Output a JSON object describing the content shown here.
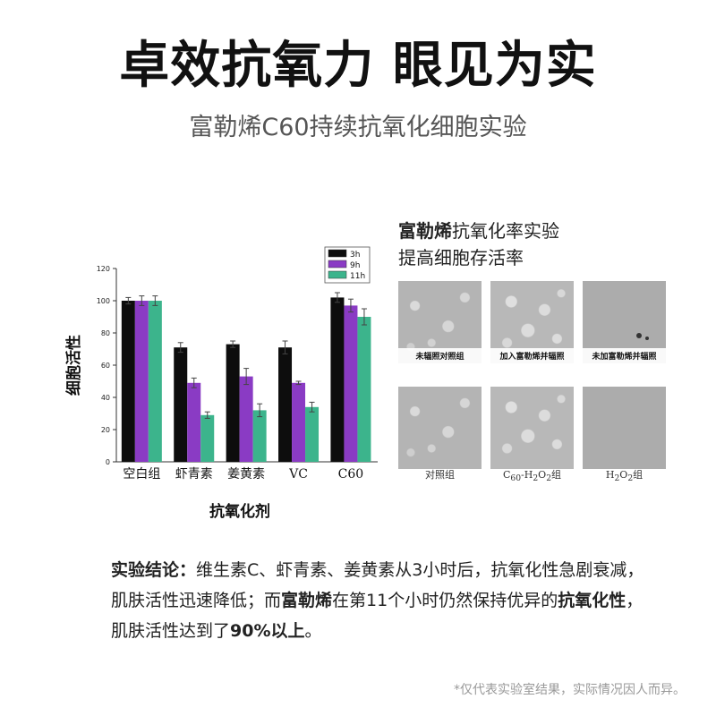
{
  "header": {
    "title": "卓效抗氧力 眼见为实",
    "subtitle": "富勒烯C60持续抗氧化细胞实验"
  },
  "chart_data": {
    "type": "bar",
    "categories": [
      "空白组",
      "虾青素",
      "姜黄素",
      "VC",
      "C60"
    ],
    "series": [
      {
        "name": "3h",
        "values": [
          100,
          71,
          73,
          71,
          102
        ],
        "errors": [
          2,
          3,
          2,
          4,
          3
        ],
        "color": "#0d0d0d"
      },
      {
        "name": "9h",
        "values": [
          100,
          49,
          53,
          49,
          97
        ],
        "errors": [
          3,
          3,
          5,
          1,
          4
        ],
        "color": "#8a3bc4"
      },
      {
        "name": "11h",
        "values": [
          100,
          29,
          32,
          34,
          90
        ],
        "errors": [
          3,
          2,
          4,
          3,
          5
        ],
        "color": "#3cb48c"
      }
    ],
    "xlabel": "抗氧化剂",
    "ylabel": "细胞活性",
    "ylim": [
      0,
      120
    ],
    "yticks": [
      0,
      20,
      40,
      60,
      80,
      100,
      120
    ],
    "legend": "top-right",
    "grid": false
  },
  "cell_panel": {
    "title_strong": "富勒烯",
    "title_rest": "抗氧化率实验",
    "title_line2": "提高细胞存活率",
    "top_labels": [
      "未辐照对照组",
      "加入富勒烯并辐照",
      "未加富勒烯并辐照"
    ],
    "bottom_labels": [
      {
        "pre": "对照组",
        "sub1": "",
        "mid": "",
        "sub2": "",
        "post": ""
      },
      {
        "pre": "C",
        "sub1": "60",
        "mid": "-H",
        "sub2": "2",
        "post": "O"
      },
      {
        "pre": "H",
        "sub1": "2",
        "mid": "O",
        "sub2": "2",
        "post": "组"
      }
    ],
    "bottom_suffix": {
      "c60": "2",
      "c60_tail": "组"
    }
  },
  "conclusion": {
    "lead": "实验结论：",
    "part1": "维生素C、虾青素、姜黄素从3小时后，抗氧化性急剧衰减，肌肤活性迅速降低；而",
    "strong1": "富勒烯",
    "part2": "在第11个小时仍然保持优异的",
    "strong2": "抗氧化性",
    "part3": "，肌肤活性达到了",
    "strong3": "90%以上",
    "part4": "。"
  },
  "disclaimer": "*仅代表实验室结果，实际情况因人而异。"
}
